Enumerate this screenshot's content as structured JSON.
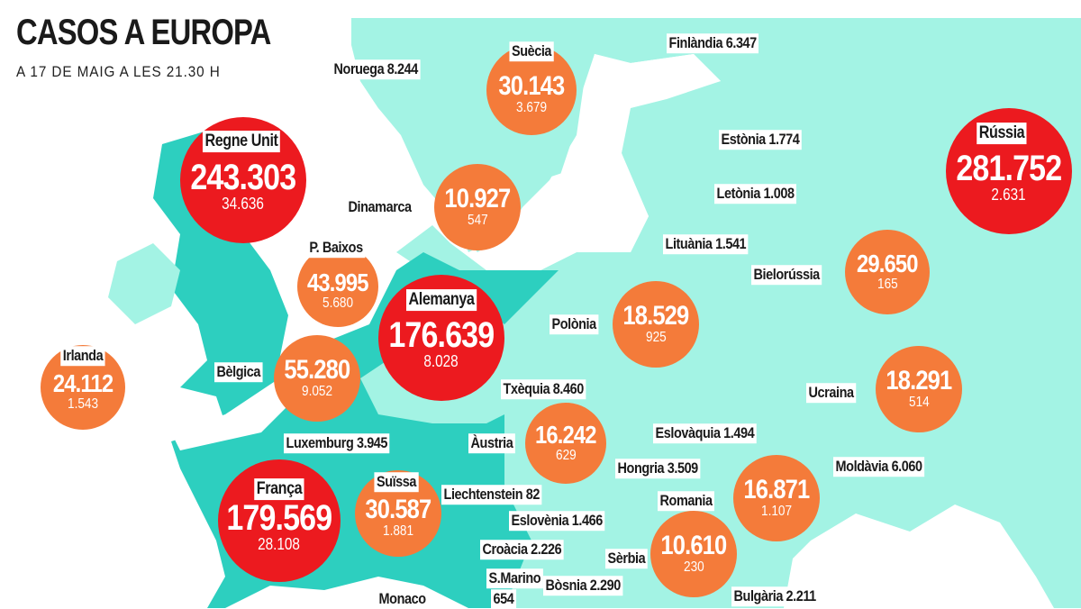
{
  "header": {
    "title": "CASOS A EUROPA",
    "subtitle": "A 17 DE MAIG A LES 21.30 H"
  },
  "colors": {
    "land_light": "#a3f3e4",
    "land_dark": "#2dcfbf",
    "bubble_large": "#ec1a1f",
    "bubble_medium": "#f47b3a"
  },
  "bubbles": [
    {
      "country": "Regne Unit",
      "cases": "243.303",
      "deaths": "34.636",
      "size": "large"
    },
    {
      "country": "Suècia",
      "cases": "30.143",
      "deaths": "3.679",
      "size": "medium"
    },
    {
      "country": "Dinamarca",
      "cases": "10.927",
      "deaths": "547",
      "size": "medium"
    },
    {
      "country": "P. Baixos",
      "cases": "43.995",
      "deaths": "5.680",
      "size": "medium"
    },
    {
      "country": "Alemanya",
      "cases": "176.639",
      "deaths": "8.028",
      "size": "large"
    },
    {
      "country": "Irlanda",
      "cases": "24.112",
      "deaths": "1.543",
      "size": "medium"
    },
    {
      "country": "Bèlgica",
      "cases": "55.280",
      "deaths": "9.052",
      "size": "medium"
    },
    {
      "country": "França",
      "cases": "179.569",
      "deaths": "28.108",
      "size": "large"
    },
    {
      "country": "Suïssa",
      "cases": "30.587",
      "deaths": "1.881",
      "size": "medium"
    },
    {
      "country": "Àustria",
      "cases": "16.242",
      "deaths": "629",
      "size": "medium"
    },
    {
      "country": "Polònia",
      "cases": "18.529",
      "deaths": "925",
      "size": "medium"
    },
    {
      "country": "Rússia",
      "cases": "281.752",
      "deaths": "2.631",
      "size": "large"
    },
    {
      "country": "Bielorússia",
      "cases": "29.650",
      "deaths": "165",
      "size": "medium"
    },
    {
      "country": "Ucraina",
      "cases": "18.291",
      "deaths": "514",
      "size": "medium"
    },
    {
      "country": "Romania",
      "cases": "16.871",
      "deaths": "1.107",
      "size": "medium"
    },
    {
      "country": "Sèrbia",
      "cases": "10.610",
      "deaths": "230",
      "size": "medium"
    }
  ],
  "labels": [
    {
      "text": "Noruega 8.244"
    },
    {
      "text": "Finlàndia 6.347"
    },
    {
      "text": "Estònia 1.774"
    },
    {
      "text": "Letònia 1.008"
    },
    {
      "text": "Lituània 1.541"
    },
    {
      "text": "Txèquia 8.460"
    },
    {
      "text": "Eslovàquia 1.494"
    },
    {
      "text": "Hongria 3.509"
    },
    {
      "text": "Moldàvia 6.060"
    },
    {
      "text": "Luxemburg 3.945"
    },
    {
      "text": "Liechtenstein 82"
    },
    {
      "text": "Eslovènia 1.466"
    },
    {
      "text": "Croàcia 2.226"
    },
    {
      "text": "S.Marino"
    },
    {
      "text": "654"
    },
    {
      "text": "Bòsnia 2.290"
    },
    {
      "text": "Bulgària 2.211"
    },
    {
      "text": "Monaco"
    }
  ]
}
